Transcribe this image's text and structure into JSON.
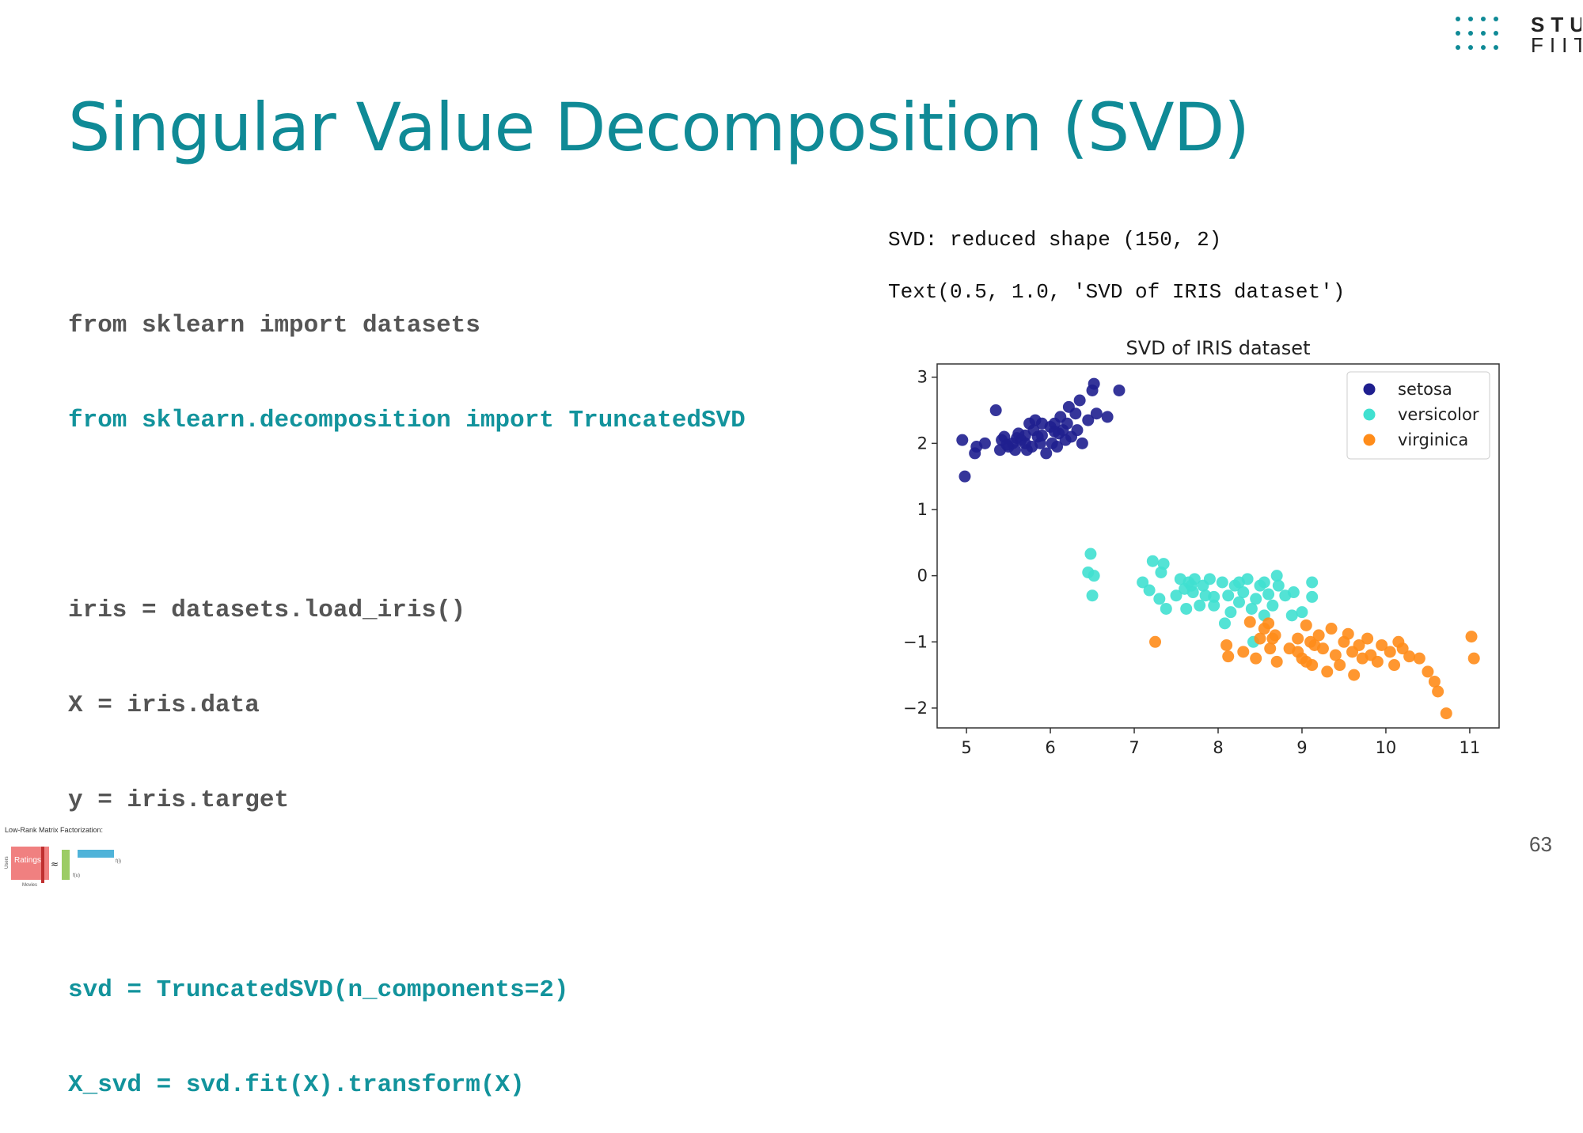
{
  "slide": {
    "title": "Singular Value Decomposition (SVD)",
    "page_number": "63",
    "logo": {
      "line1": "STU",
      "line2": "FIIT",
      "color": "#0f8a96"
    },
    "thumbnail": {
      "caption": "Low-Rank Matrix Factorization:",
      "ratings": "Ratings",
      "users": "Users",
      "movies": "Movies",
      "approx": "≈",
      "fu": "f(u)",
      "fi": "f(i)"
    }
  },
  "code": {
    "lines": [
      {
        "text": "from sklearn import datasets",
        "style": "gray"
      },
      {
        "text": "from sklearn.decomposition import TruncatedSVD",
        "style": "teal"
      },
      {
        "text": "",
        "style": "gray"
      },
      {
        "text": "iris = datasets.load_iris()",
        "style": "gray"
      },
      {
        "text": "X = iris.data",
        "style": "gray"
      },
      {
        "text": "y = iris.target",
        "style": "gray"
      },
      {
        "text": "",
        "style": "gray"
      },
      {
        "text": "svd = TruncatedSVD(n_components=2)",
        "style": "teal"
      },
      {
        "text": "X_svd = svd.fit(X).transform(X)",
        "style": "teal"
      }
    ]
  },
  "output": {
    "line1": "SVD: reduced shape (150, 2)",
    "line2": "Text(0.5, 1.0, 'SVD of IRIS dataset')"
  },
  "chart_data": {
    "type": "scatter",
    "title": "SVD of IRIS dataset",
    "xlabel": "",
    "ylabel": "",
    "xlim": [
      4.65,
      11.35
    ],
    "ylim": [
      -2.3,
      3.2
    ],
    "xticks": [
      5,
      6,
      7,
      8,
      9,
      10,
      11
    ],
    "yticks": [
      3,
      2,
      1,
      0,
      -1,
      -2
    ],
    "grid": false,
    "legend_position": "top-right",
    "series": [
      {
        "name": "setosa",
        "color": "#1f1f8f",
        "points": [
          [
            4.95,
            2.05
          ],
          [
            4.98,
            1.5
          ],
          [
            5.1,
            1.85
          ],
          [
            5.12,
            1.95
          ],
          [
            5.22,
            2.0
          ],
          [
            5.35,
            2.5
          ],
          [
            5.4,
            1.9
          ],
          [
            5.42,
            2.05
          ],
          [
            5.45,
            2.1
          ],
          [
            5.5,
            1.95
          ],
          [
            5.55,
            2.0
          ],
          [
            5.58,
            1.9
          ],
          [
            5.62,
            2.15
          ],
          [
            5.65,
            2.05
          ],
          [
            5.7,
            2.0
          ],
          [
            5.72,
            1.9
          ],
          [
            5.75,
            2.3
          ],
          [
            5.78,
            1.95
          ],
          [
            5.8,
            2.2
          ],
          [
            5.82,
            2.35
          ],
          [
            5.85,
            2.1
          ],
          [
            5.88,
            2.0
          ],
          [
            5.9,
            2.3
          ],
          [
            5.95,
            1.85
          ],
          [
            6.0,
            2.25
          ],
          [
            6.02,
            2.0
          ],
          [
            6.05,
            2.3
          ],
          [
            6.08,
            1.95
          ],
          [
            6.1,
            2.15
          ],
          [
            6.12,
            2.4
          ],
          [
            6.15,
            2.2
          ],
          [
            6.18,
            2.05
          ],
          [
            6.2,
            2.3
          ],
          [
            6.22,
            2.55
          ],
          [
            6.25,
            2.1
          ],
          [
            6.3,
            2.45
          ],
          [
            6.32,
            2.2
          ],
          [
            6.35,
            2.65
          ],
          [
            6.38,
            2.0
          ],
          [
            6.45,
            2.35
          ],
          [
            6.5,
            2.8
          ],
          [
            6.52,
            2.9
          ],
          [
            6.55,
            2.45
          ],
          [
            6.68,
            2.4
          ],
          [
            6.82,
            2.8
          ],
          [
            5.6,
            2.08
          ],
          [
            5.9,
            2.12
          ],
          [
            6.05,
            2.18
          ],
          [
            5.7,
            2.12
          ],
          [
            5.48,
            1.98
          ]
        ]
      },
      {
        "name": "versicolor",
        "color": "#40e0d0",
        "points": [
          [
            6.45,
            0.05
          ],
          [
            6.48,
            0.33
          ],
          [
            6.5,
            -0.3
          ],
          [
            6.52,
            0.0
          ],
          [
            7.1,
            -0.1
          ],
          [
            7.18,
            -0.22
          ],
          [
            7.22,
            0.22
          ],
          [
            7.3,
            -0.35
          ],
          [
            7.32,
            0.05
          ],
          [
            7.35,
            0.18
          ],
          [
            7.38,
            -0.5
          ],
          [
            7.5,
            -0.3
          ],
          [
            7.55,
            -0.05
          ],
          [
            7.6,
            -0.2
          ],
          [
            7.62,
            -0.5
          ],
          [
            7.65,
            -0.1
          ],
          [
            7.7,
            -0.25
          ],
          [
            7.72,
            -0.05
          ],
          [
            7.78,
            -0.45
          ],
          [
            7.82,
            -0.15
          ],
          [
            7.85,
            -0.3
          ],
          [
            7.9,
            -0.05
          ],
          [
            7.95,
            -0.45
          ],
          [
            8.05,
            -0.1
          ],
          [
            8.08,
            -0.72
          ],
          [
            8.12,
            -0.3
          ],
          [
            8.15,
            -0.55
          ],
          [
            8.2,
            -0.15
          ],
          [
            8.25,
            -0.4
          ],
          [
            8.3,
            -0.25
          ],
          [
            8.35,
            -0.05
          ],
          [
            8.4,
            -0.5
          ],
          [
            8.42,
            -1.0
          ],
          [
            8.45,
            -0.35
          ],
          [
            8.5,
            -0.15
          ],
          [
            8.55,
            -0.1
          ],
          [
            8.6,
            -0.28
          ],
          [
            8.65,
            -0.45
          ],
          [
            8.7,
            0.0
          ],
          [
            8.72,
            -0.15
          ],
          [
            8.8,
            -0.3
          ],
          [
            8.88,
            -0.6
          ],
          [
            8.9,
            -0.25
          ],
          [
            9.0,
            -0.55
          ],
          [
            9.12,
            -0.1
          ],
          [
            9.12,
            -0.32
          ],
          [
            8.25,
            -0.1
          ],
          [
            7.95,
            -0.32
          ],
          [
            8.55,
            -0.6
          ],
          [
            7.68,
            -0.15
          ]
        ]
      },
      {
        "name": "virginica",
        "color": "#ff8c1a",
        "points": [
          [
            7.25,
            -1.0
          ],
          [
            8.1,
            -1.05
          ],
          [
            8.12,
            -1.22
          ],
          [
            8.3,
            -1.15
          ],
          [
            8.38,
            -0.7
          ],
          [
            8.45,
            -1.25
          ],
          [
            8.5,
            -0.95
          ],
          [
            8.55,
            -0.8
          ],
          [
            8.6,
            -0.72
          ],
          [
            8.62,
            -1.1
          ],
          [
            8.68,
            -0.9
          ],
          [
            8.7,
            -1.3
          ],
          [
            8.85,
            -1.1
          ],
          [
            8.95,
            -0.95
          ],
          [
            9.0,
            -1.25
          ],
          [
            9.05,
            -0.75
          ],
          [
            9.1,
            -1.0
          ],
          [
            9.12,
            -1.35
          ],
          [
            9.15,
            -1.05
          ],
          [
            9.2,
            -0.9
          ],
          [
            9.25,
            -1.1
          ],
          [
            9.3,
            -1.45
          ],
          [
            9.35,
            -0.8
          ],
          [
            9.4,
            -1.2
          ],
          [
            9.45,
            -1.35
          ],
          [
            9.5,
            -1.0
          ],
          [
            9.55,
            -0.88
          ],
          [
            9.6,
            -1.15
          ],
          [
            9.62,
            -1.5
          ],
          [
            9.68,
            -1.05
          ],
          [
            9.72,
            -1.25
          ],
          [
            9.78,
            -0.95
          ],
          [
            9.82,
            -1.2
          ],
          [
            9.9,
            -1.3
          ],
          [
            9.95,
            -1.05
          ],
          [
            10.05,
            -1.15
          ],
          [
            10.1,
            -1.35
          ],
          [
            10.2,
            -1.1
          ],
          [
            10.28,
            -1.22
          ],
          [
            10.4,
            -1.25
          ],
          [
            10.5,
            -1.45
          ],
          [
            10.58,
            -1.6
          ],
          [
            10.62,
            -1.75
          ],
          [
            10.72,
            -2.08
          ],
          [
            11.02,
            -0.92
          ],
          [
            11.05,
            -1.25
          ],
          [
            8.95,
            -1.15
          ],
          [
            9.05,
            -1.3
          ],
          [
            10.15,
            -1.0
          ],
          [
            8.65,
            -0.95
          ]
        ]
      }
    ]
  }
}
